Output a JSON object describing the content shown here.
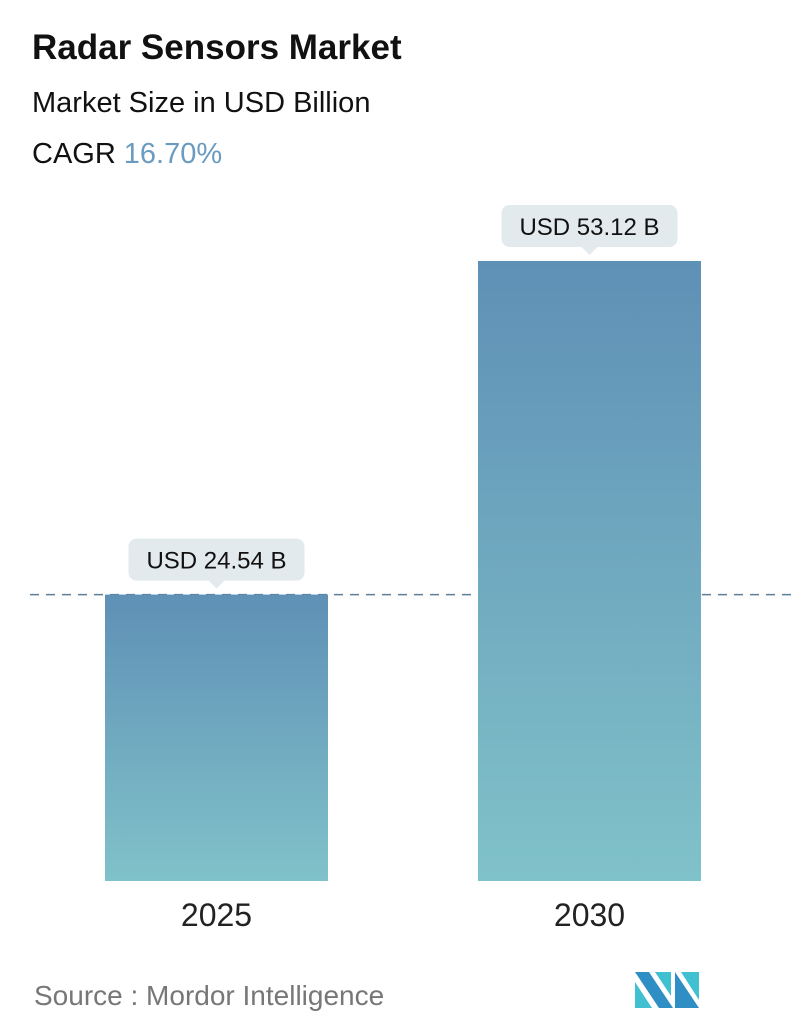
{
  "header": {
    "title": "Radar Sensors Market",
    "subtitle": "Market Size in USD Billion",
    "cagr_label": "CAGR",
    "cagr_value": "16.70%"
  },
  "chart_data": {
    "type": "bar",
    "categories": [
      "2025",
      "2030"
    ],
    "values": [
      24.54,
      53.12
    ],
    "data_labels": [
      "USD 24.54 B",
      "USD 53.12 B"
    ],
    "ylim": [
      0,
      53.12
    ],
    "grid": false,
    "reference_line": {
      "value": 24.54,
      "style": "dashed"
    },
    "colors": {
      "bar_top": "#5f90b6",
      "bar_bottom": "#80c2c9",
      "callout": "#e3eaed",
      "cagr": "#6a9bc0"
    }
  },
  "footer": {
    "source": "Source :  Mordor Intelligence",
    "logo_text": "MI"
  }
}
